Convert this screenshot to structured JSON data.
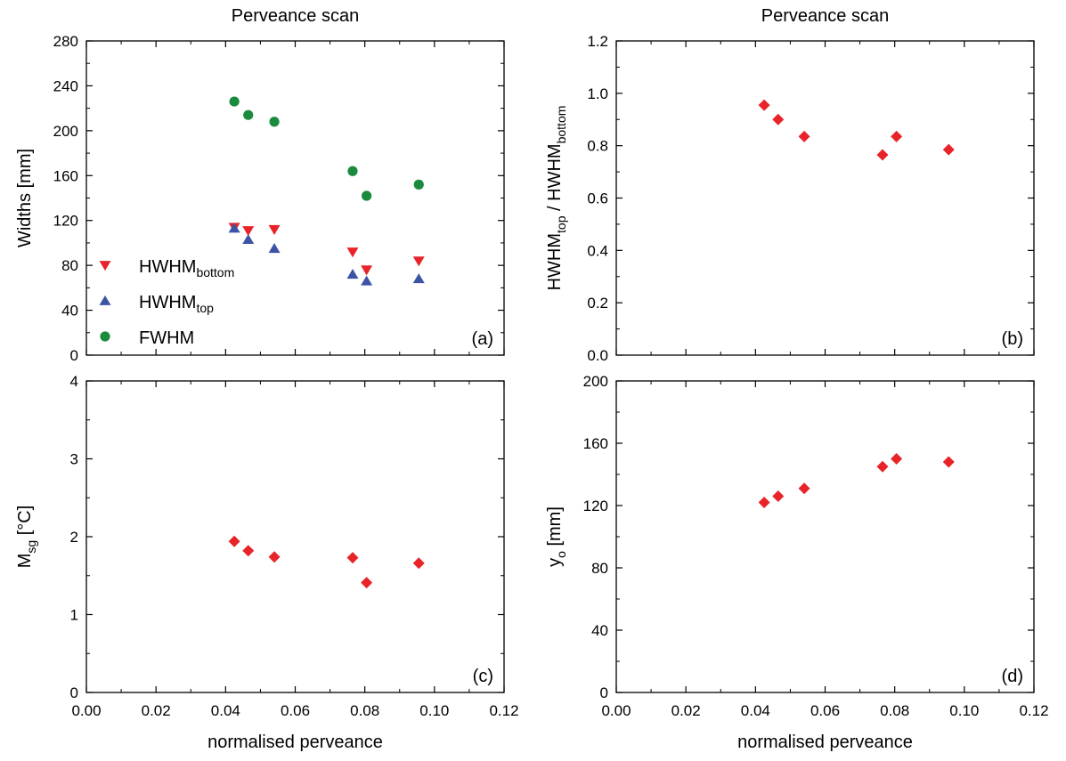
{
  "colors": {
    "red": "#e8242a",
    "blue": "#3d54a6",
    "green": "#1a8b3c"
  },
  "chart_data": [
    {
      "id": "a",
      "type": "scatter",
      "title": "Perveance scan",
      "panel_label": "(a)",
      "xlabel": "",
      "ylabel": "Widths [mm]",
      "xlim": [
        0,
        0.12
      ],
      "ylim": [
        0,
        280
      ],
      "xticks": [
        "0.00",
        "0.02",
        "0.04",
        "0.06",
        "0.08",
        "0.10",
        "0.12"
      ],
      "yticks": [
        "0",
        "40",
        "80",
        "120",
        "160",
        "200",
        "240",
        "280"
      ],
      "show_xtick_labels": false,
      "legend_position": "bottom-left",
      "series": [
        {
          "name_main": "HWHM",
          "name_sub": "bottom",
          "marker": "triangle-down",
          "color": "#e8242a",
          "points": [
            [
              0.0425,
              114
            ],
            [
              0.0465,
              111
            ],
            [
              0.054,
              112
            ],
            [
              0.0765,
              92
            ],
            [
              0.0805,
              76
            ],
            [
              0.0955,
              84
            ]
          ]
        },
        {
          "name_main": "HWHM",
          "name_sub": "top",
          "marker": "triangle-up",
          "color": "#3d54a6",
          "points": [
            [
              0.0425,
              113
            ],
            [
              0.0465,
              103
            ],
            [
              0.054,
              95
            ],
            [
              0.0765,
              72
            ],
            [
              0.0805,
              66
            ],
            [
              0.0955,
              68
            ]
          ]
        },
        {
          "name_main": "FWHM",
          "name_sub": "",
          "marker": "circle",
          "color": "#1a8b3c",
          "points": [
            [
              0.0425,
              226
            ],
            [
              0.0465,
              214
            ],
            [
              0.054,
              208
            ],
            [
              0.0765,
              164
            ],
            [
              0.0805,
              142
            ],
            [
              0.0955,
              152
            ]
          ]
        }
      ]
    },
    {
      "id": "b",
      "type": "scatter",
      "title": "Perveance scan",
      "panel_label": "(b)",
      "xlabel": "",
      "ylabel_parts": [
        [
          "HWHM",
          ""
        ],
        [
          "top",
          "sub"
        ],
        [
          " / HWHM",
          ""
        ],
        [
          "bottom",
          "sub"
        ]
      ],
      "xlim": [
        0,
        0.12
      ],
      "ylim": [
        0,
        1.2
      ],
      "xticks": [
        "0.00",
        "0.02",
        "0.04",
        "0.06",
        "0.08",
        "0.10",
        "0.12"
      ],
      "yticks": [
        "0.0",
        "0.2",
        "0.4",
        "0.6",
        "0.8",
        "1.0",
        "1.2"
      ],
      "show_xtick_labels": false,
      "series": [
        {
          "marker": "diamond",
          "color": "#e8242a",
          "points": [
            [
              0.0425,
              0.955
            ],
            [
              0.0465,
              0.9
            ],
            [
              0.054,
              0.835
            ],
            [
              0.0765,
              0.765
            ],
            [
              0.0805,
              0.835
            ],
            [
              0.0955,
              0.785
            ]
          ]
        }
      ]
    },
    {
      "id": "c",
      "type": "scatter",
      "title": "",
      "panel_label": "(c)",
      "xlabel": "normalised perveance",
      "ylabel_parts": [
        [
          "M",
          ""
        ],
        [
          "sg",
          "sub"
        ],
        [
          "   [°C]",
          ""
        ]
      ],
      "xlim": [
        0,
        0.12
      ],
      "ylim": [
        0,
        4
      ],
      "xticks": [
        "0.00",
        "0.02",
        "0.04",
        "0.06",
        "0.08",
        "0.10",
        "0.12"
      ],
      "yticks": [
        "0",
        "1",
        "2",
        "3",
        "4"
      ],
      "show_xtick_labels": true,
      "series": [
        {
          "marker": "diamond",
          "color": "#e8242a",
          "points": [
            [
              0.0425,
              1.94
            ],
            [
              0.0465,
              1.82
            ],
            [
              0.054,
              1.74
            ],
            [
              0.0765,
              1.73
            ],
            [
              0.0805,
              1.41
            ],
            [
              0.0955,
              1.66
            ]
          ]
        }
      ]
    },
    {
      "id": "d",
      "type": "scatter",
      "title": "",
      "panel_label": "(d)",
      "xlabel": "normalised perveance",
      "ylabel_parts": [
        [
          "y",
          ""
        ],
        [
          "o",
          "sub"
        ],
        [
          "  [mm]",
          ""
        ]
      ],
      "xlim": [
        0,
        0.12
      ],
      "ylim": [
        0,
        200
      ],
      "xticks": [
        "0.00",
        "0.02",
        "0.04",
        "0.06",
        "0.08",
        "0.10",
        "0.12"
      ],
      "yticks": [
        "0",
        "40",
        "80",
        "120",
        "160",
        "200"
      ],
      "show_xtick_labels": true,
      "series": [
        {
          "marker": "diamond",
          "color": "#e8242a",
          "points": [
            [
              0.0425,
              122
            ],
            [
              0.0465,
              126
            ],
            [
              0.054,
              131
            ],
            [
              0.0765,
              145
            ],
            [
              0.0805,
              150
            ],
            [
              0.0955,
              148
            ]
          ]
        }
      ]
    }
  ]
}
